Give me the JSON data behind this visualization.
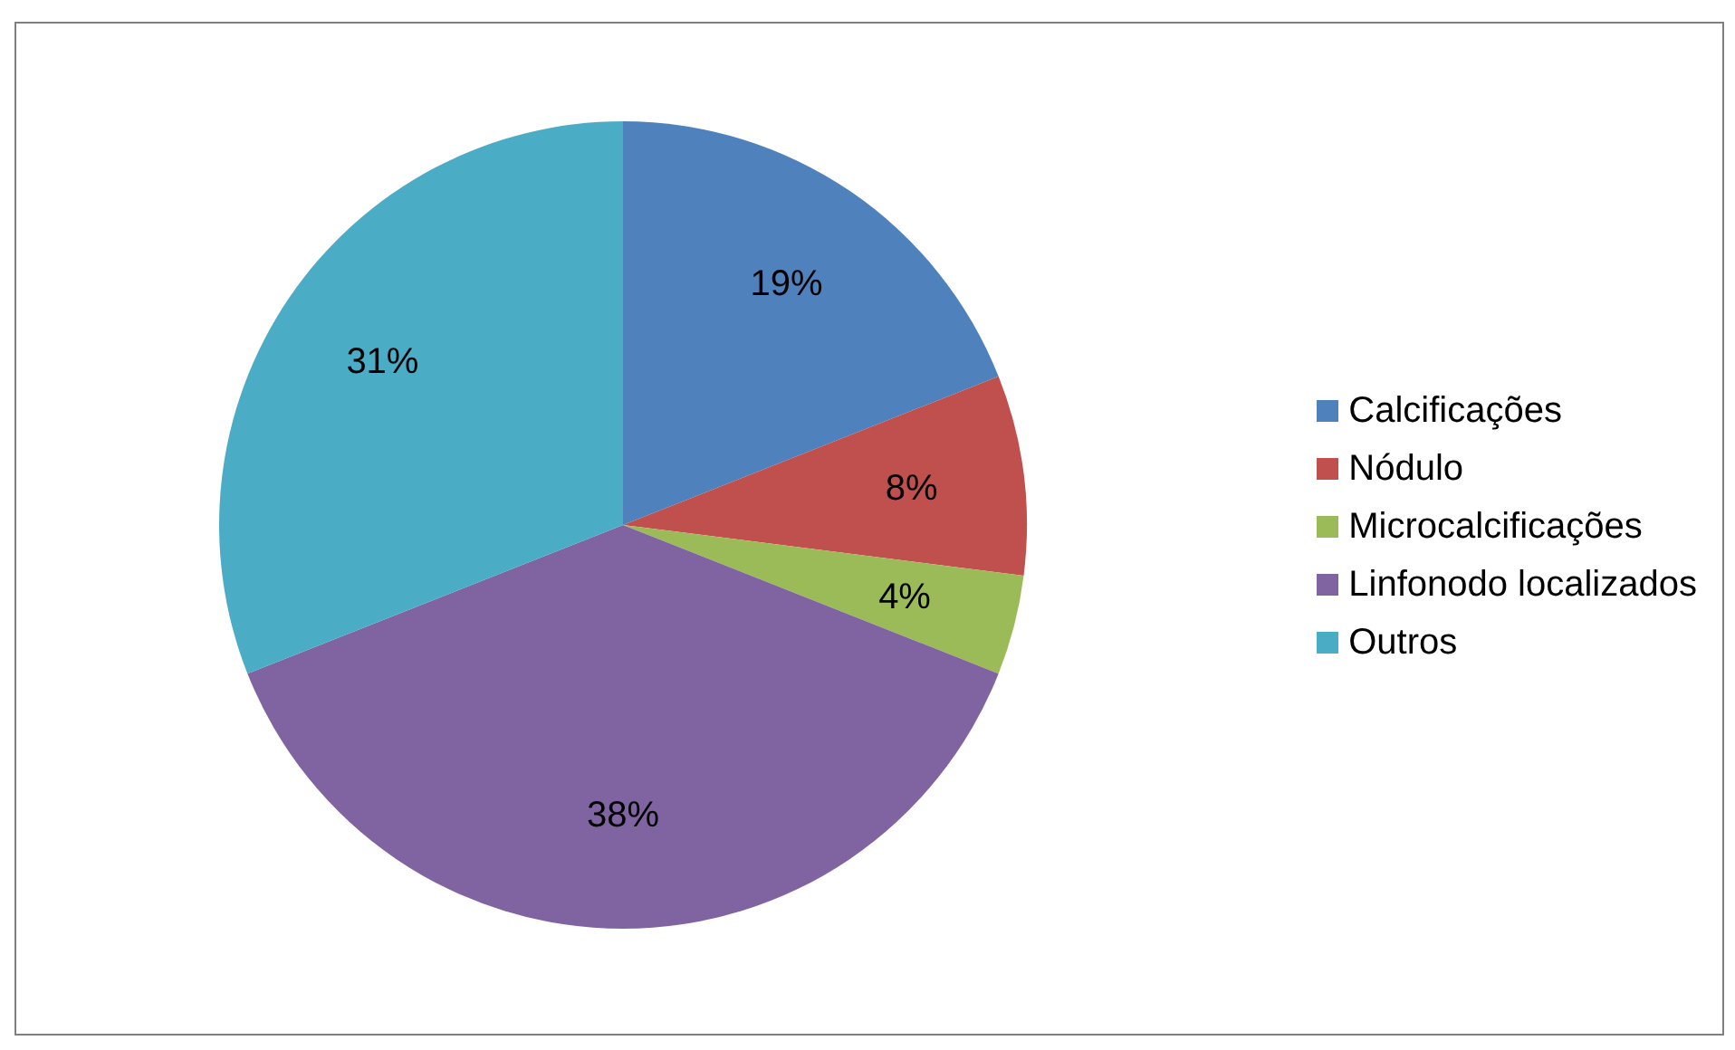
{
  "chart_data": {
    "type": "pie",
    "categories": [
      "Calcificações",
      "Nódulo",
      "Microcalcificações",
      "Linfonodo localizados",
      "Outros"
    ],
    "values": [
      19,
      8,
      4,
      38,
      31
    ],
    "colors": [
      "#4f81bd",
      "#c0504d",
      "#9bbb59",
      "#8064a2",
      "#4bacc6"
    ],
    "value_labels": [
      "19%",
      "8%",
      "4%",
      "38%",
      "31%"
    ],
    "legend": "right"
  }
}
